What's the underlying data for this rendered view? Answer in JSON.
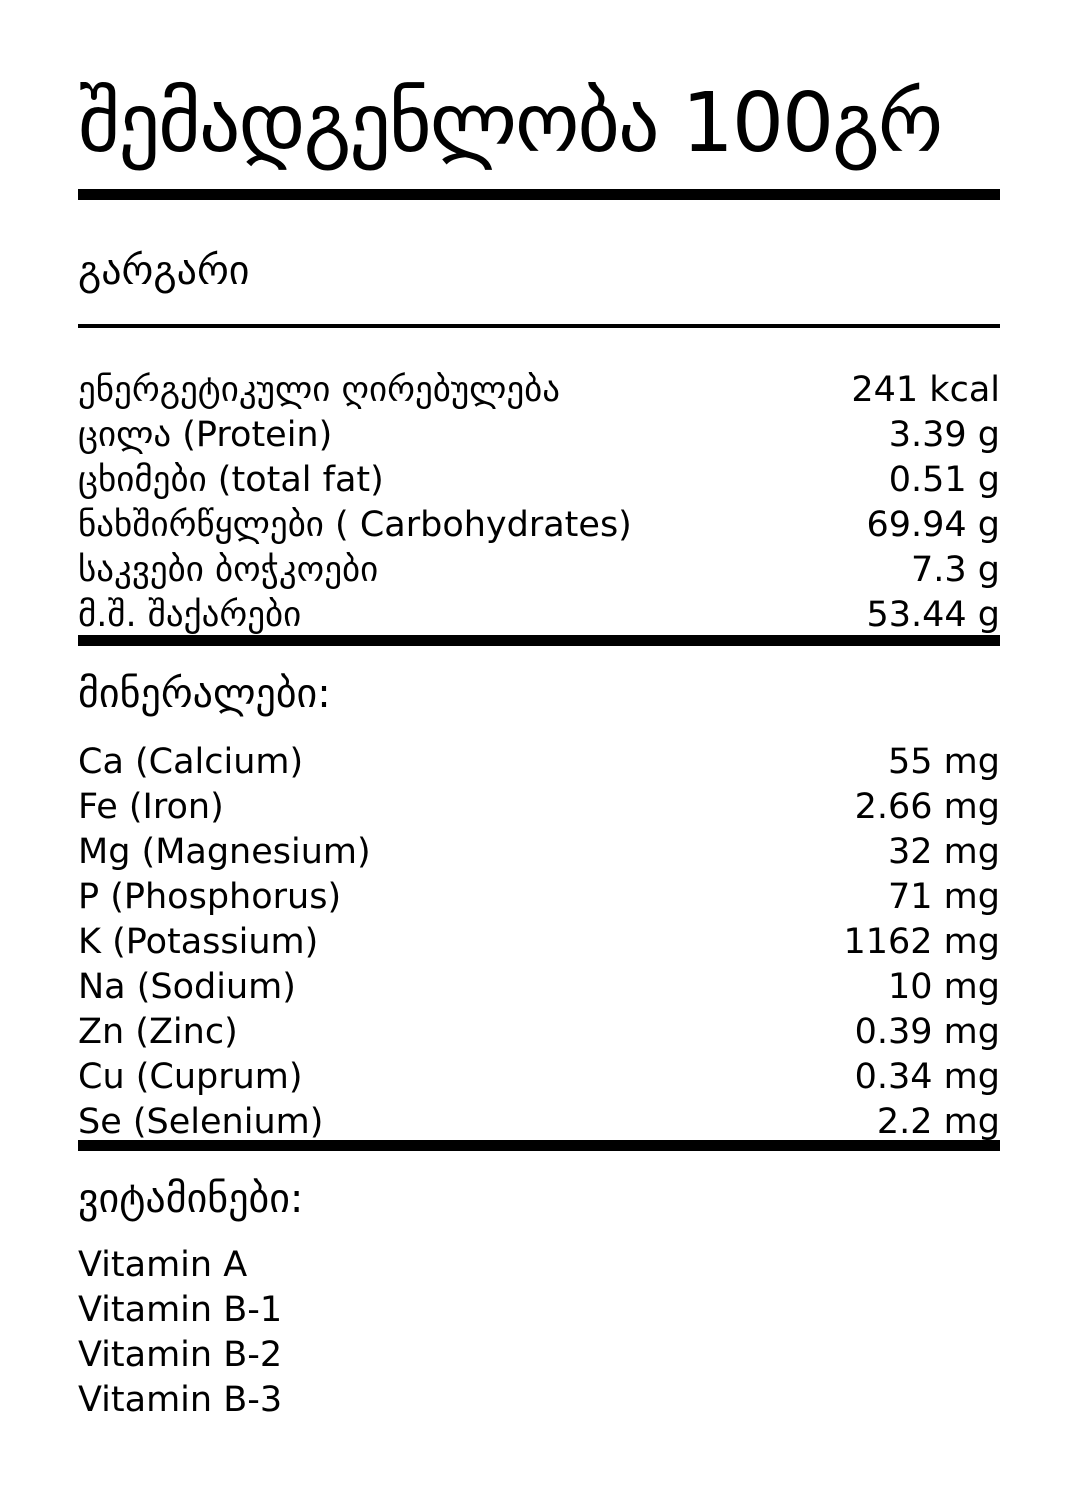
{
  "page": {
    "title": "შემადგენლობა 100გრ",
    "product_name": "გარგარი"
  },
  "nutrition": {
    "rows": [
      {
        "label": "ენერგეტიკული ღირებულება",
        "value": "241 kcal"
      },
      {
        "label": "ცილა (Protein)",
        "value": "3.39 g"
      },
      {
        "label": "ცხიმები (total fat)",
        "value": "0.51 g"
      },
      {
        "label": "ნახშირწყლები ( Carbohydrates)",
        "value": "69.94 g"
      },
      {
        "label": "საკვები ბოჭკოები",
        "value": "7.3 g"
      },
      {
        "label": "მ.შ. შაქარები",
        "value": "53.44 g"
      }
    ]
  },
  "minerals": {
    "header": "მინერალები:",
    "rows": [
      {
        "label": "Ca (Calcium)",
        "value": "55 mg"
      },
      {
        "label": "Fe (Iron)",
        "value": "2.66 mg"
      },
      {
        "label": "Mg (Magnesium)",
        "value": "32 mg"
      },
      {
        "label": "P (Phosphorus)",
        "value": "71 mg"
      },
      {
        "label": "K (Potassium)",
        "value": "1162 mg"
      },
      {
        "label": "Na (Sodium)",
        "value": "10 mg"
      },
      {
        "label": "Zn (Zinc)",
        "value": "0.39 mg"
      },
      {
        "label": "Cu (Cuprum)",
        "value": "0.34 mg"
      },
      {
        "label": "Se (Selenium)",
        "value": "2.2 mg"
      }
    ]
  },
  "vitamins": {
    "header": "ვიტამინები:",
    "items": [
      "Vitamin A",
      "Vitamin B-1",
      "Vitamin B-2",
      "Vitamin B-3"
    ]
  }
}
